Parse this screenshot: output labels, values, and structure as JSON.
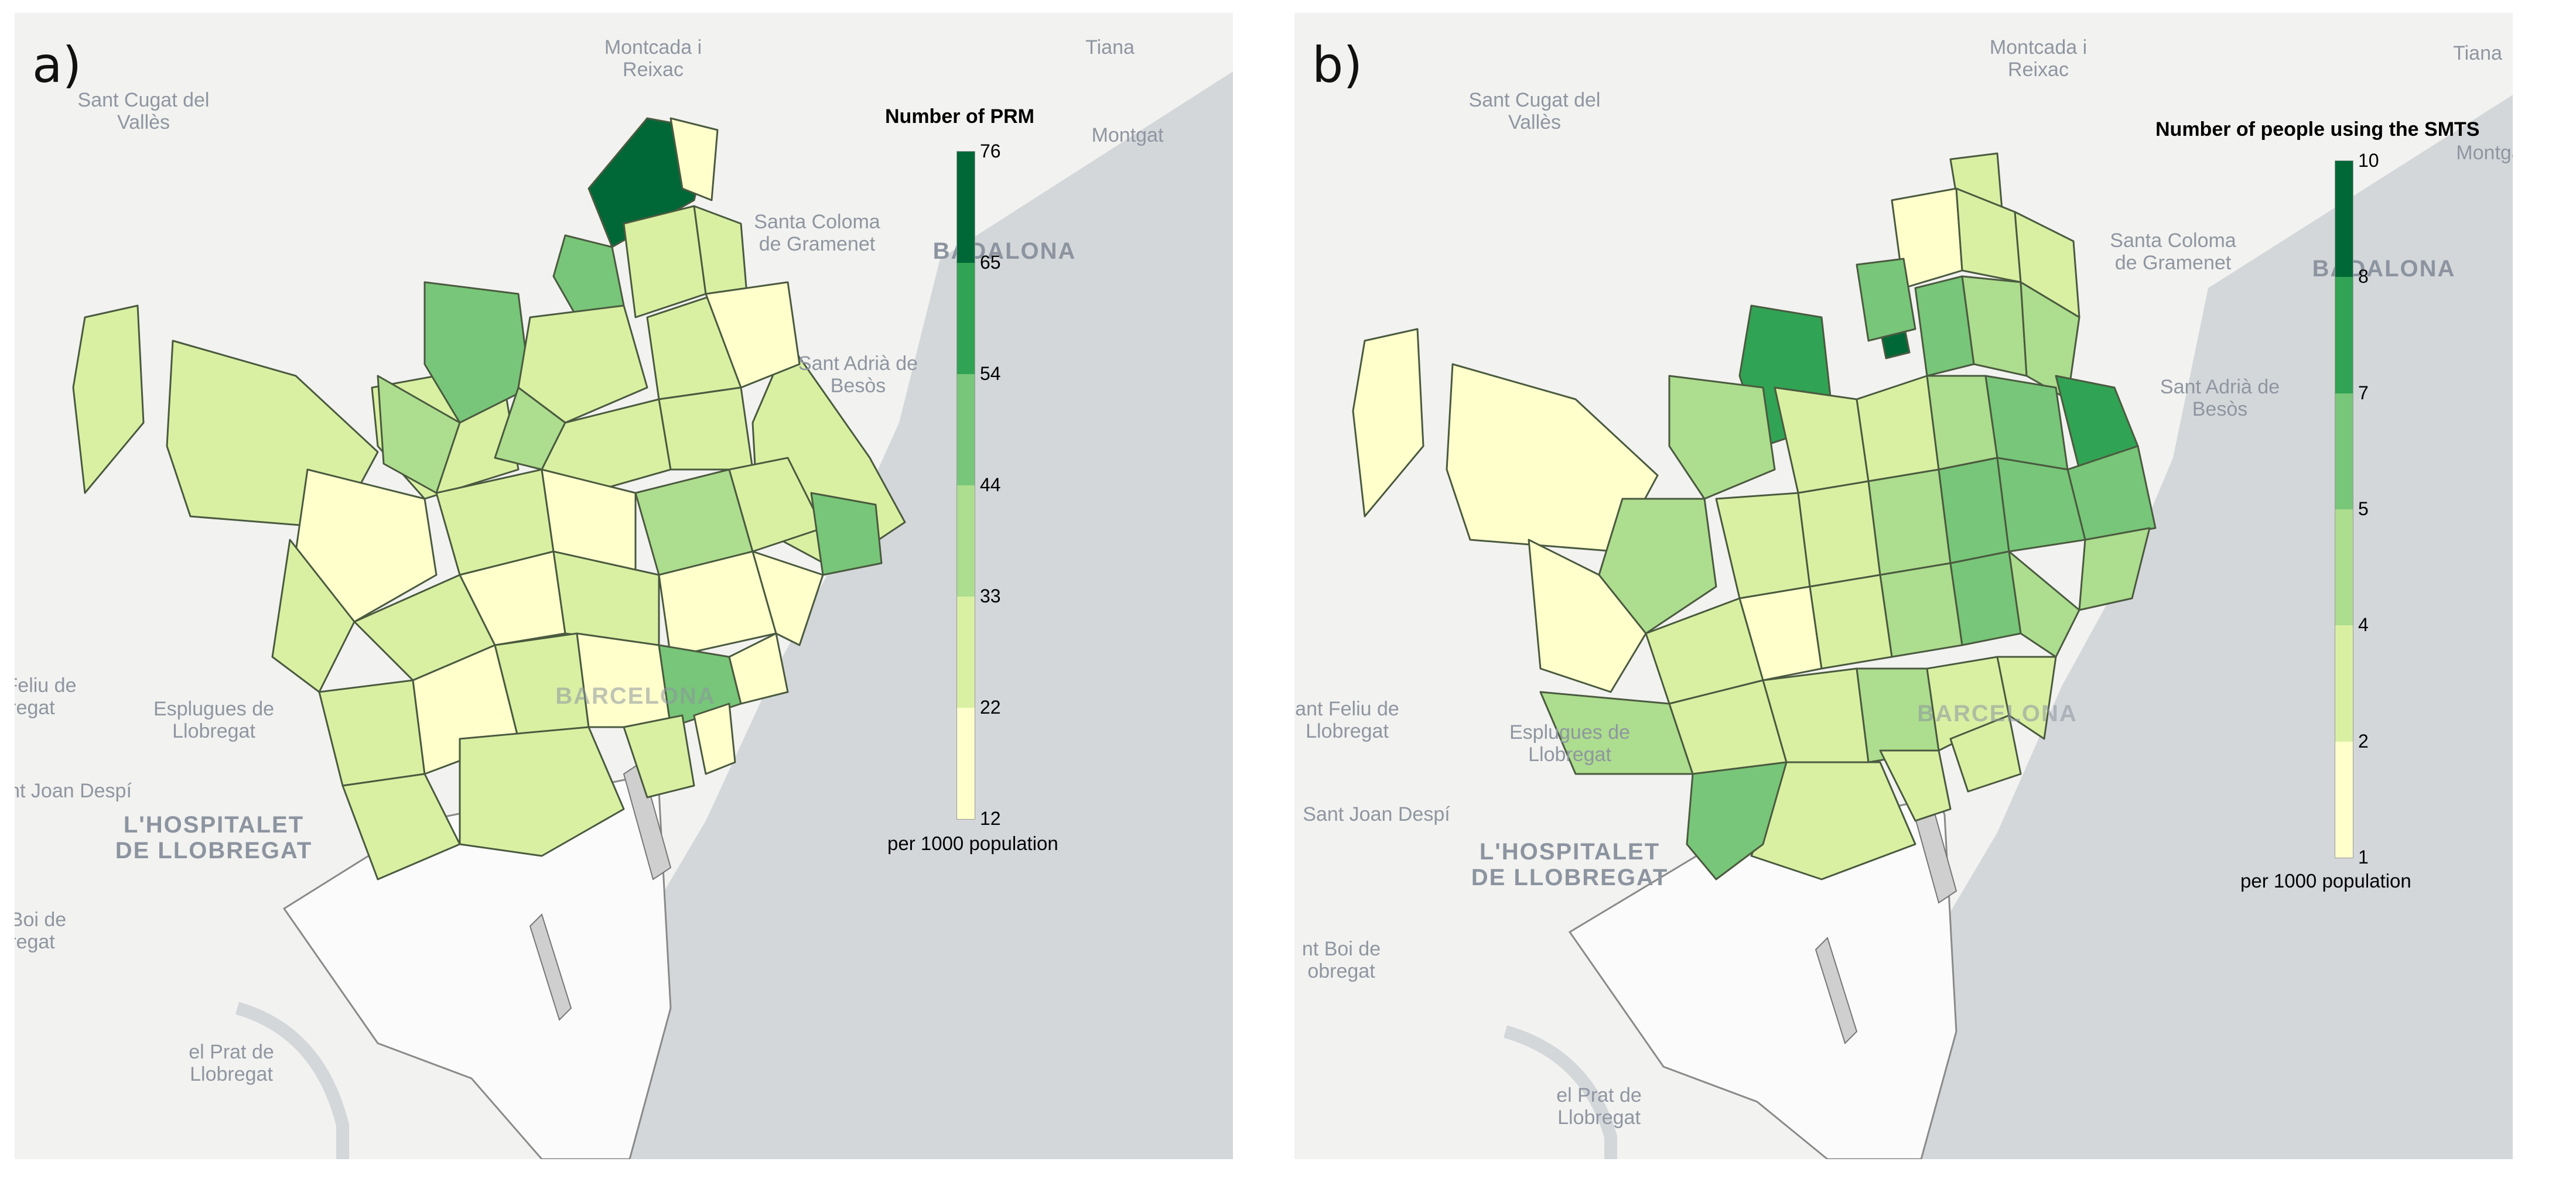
{
  "panels": [
    {
      "label": "a)",
      "legend": {
        "title": "Number of PRM",
        "unit": "per 1000 population",
        "ticks": [
          "76",
          "65",
          "54",
          "44",
          "33",
          "22",
          "12"
        ],
        "colors": [
          "#006837",
          "#31a354",
          "#78c679",
          "#addd8e",
          "#d9f0a3",
          "#ffffcc"
        ]
      },
      "places": {
        "montcada": "Montcada i",
        "reixac": "Reixac",
        "tiana": "Tiana",
        "sant_cugat1": "Sant Cugat del",
        "sant_cugat2": "Vallès",
        "montgat": "Montgat",
        "santa_coloma1": "Santa Coloma",
        "santa_coloma2": "de Gramenet",
        "badalona": "BADALONA",
        "sant_adria1": "Sant Adrià de",
        "sant_adria2": "Besòs",
        "feliu1": "Feliu de",
        "feliu2": "regat",
        "esplugues1": "Esplugues de",
        "esplugues2": "Llobregat",
        "joan_despi": "nt Joan Despí",
        "hospitalet1": "L'HOSPITALET",
        "hospitalet2": "DE LLOBREGAT",
        "boi1": "Boi de",
        "boi2": "regat",
        "prat1": "el Prat de",
        "prat2": "Llobregat",
        "barcelona": "BARCELONA"
      }
    },
    {
      "label": "b)",
      "legend": {
        "title": "Number of people using the SMTS",
        "unit": "per 1000 population",
        "ticks": [
          "10",
          "8",
          "7",
          "5",
          "4",
          "2",
          "1"
        ],
        "colors": [
          "#006837",
          "#31a354",
          "#78c679",
          "#addd8e",
          "#d9f0a3",
          "#ffffcc"
        ]
      },
      "places": {
        "montcada": "Montcada i",
        "reixac": "Reixac",
        "tiana": "Tiana",
        "sant_cugat1": "Sant Cugat del",
        "sant_cugat2": "Vallès",
        "montgat": "Montga",
        "santa_coloma1": "Santa Coloma",
        "santa_coloma2": "de Gramenet",
        "badalona": "BADALONA",
        "sant_adria1": "Sant Adrià de",
        "sant_adria2": "Besòs",
        "feliu1": "ant Feliu de",
        "feliu2": "Llobregat",
        "esplugues1": "Esplugues de",
        "esplugues2": "Llobregat",
        "joan_despi": "Sant Joan Despí",
        "hospitalet1": "L'HOSPITALET",
        "hospitalet2": "DE LLOBREGAT",
        "boi1": "nt Boi de",
        "boi2": "obregat",
        "prat1": "el Prat de",
        "prat2": "Llobregat",
        "barcelona": "BARCELONA"
      }
    }
  ]
}
